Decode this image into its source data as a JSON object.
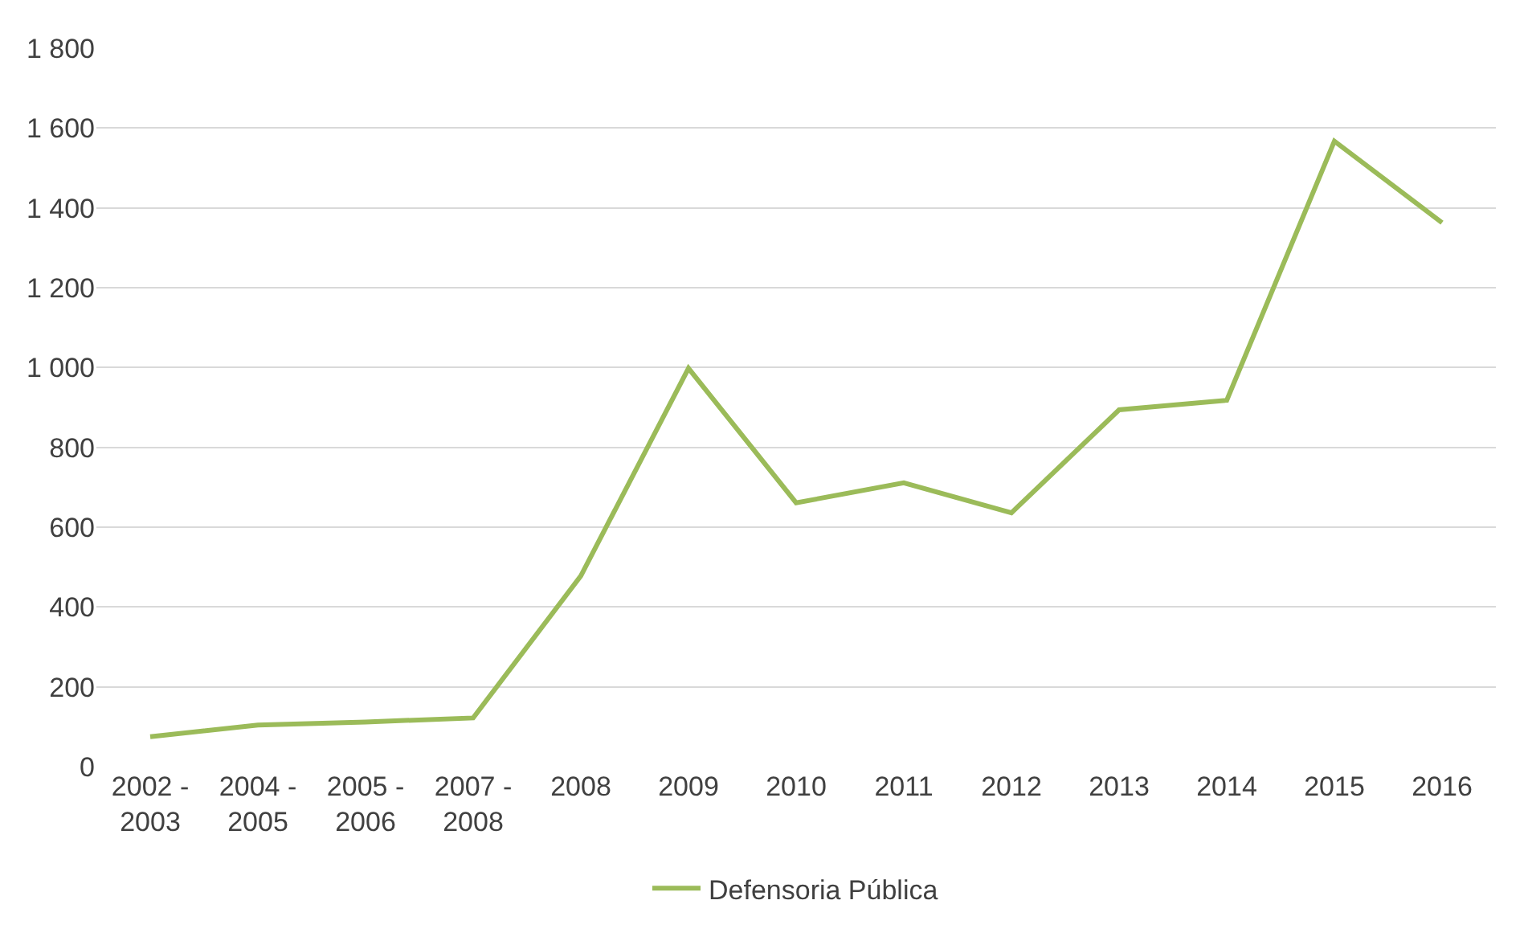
{
  "chart_data": {
    "type": "line",
    "categories": [
      "2002 - 2003",
      "2004 - 2005",
      "2005 - 2006",
      "2007 - 2008",
      "2008",
      "2009",
      "2010",
      "2011",
      "2012",
      "2013",
      "2014",
      "2015",
      "2016"
    ],
    "series": [
      {
        "name": "Defensoria Pública",
        "color": "#9bbb59",
        "values": [
          75,
          104,
          112,
          122,
          478,
          998,
          661,
          711,
          636,
          894,
          918,
          1567,
          1363
        ]
      }
    ],
    "ylim": [
      0,
      1800
    ],
    "yticks": [
      0,
      200,
      400,
      600,
      800,
      {
        "value": 1000,
        "label": "1 000"
      },
      {
        "value": 1200,
        "label": "1 200"
      },
      {
        "value": 1400,
        "label": "1 400"
      },
      {
        "value": 1600,
        "label": "1 600"
      },
      {
        "value": 1800,
        "label": "1 800"
      }
    ],
    "grid": "y",
    "legend": "bottom",
    "marker": "none",
    "line_style": "solid"
  }
}
